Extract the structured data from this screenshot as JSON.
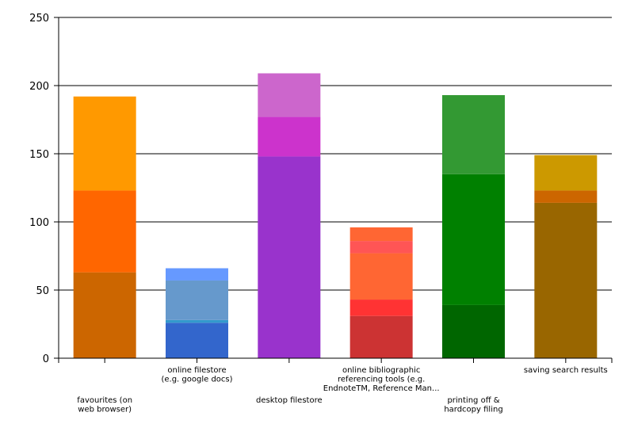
{
  "chart_data": {
    "type": "stacked-bar",
    "categories": [
      [
        "favourites (on",
        "web browser)"
      ],
      [
        "online filestore",
        "(e.g. google docs)"
      ],
      [
        "desktop filestore"
      ],
      [
        "online bibliographic",
        "referencing tools (e.g.",
        "EndnoteTM, Reference Man..."
      ],
      [
        "printing off &",
        "hardcopy filing"
      ],
      [
        "saving search results"
      ]
    ],
    "stacks": [
      {
        "values": [
          63,
          60,
          69
        ],
        "colors": [
          "#cc6600",
          "#ff6600",
          "#ff9900"
        ]
      },
      {
        "values": [
          26,
          2,
          29,
          9
        ],
        "colors": [
          "#3366cc",
          "#3399cc",
          "#6699cc",
          "#6699ff"
        ]
      },
      {
        "values": [
          148,
          29,
          32
        ],
        "colors": [
          "#9933cc",
          "#cc33cc",
          "#cc66cc"
        ]
      },
      {
        "values": [
          31,
          12,
          34,
          9,
          10
        ],
        "colors": [
          "#cc3333",
          "#ff3333",
          "#ff6633",
          "#ff5555",
          "#ff6633"
        ]
      },
      {
        "values": [
          39,
          96,
          58
        ],
        "colors": [
          "#006600",
          "#008000",
          "#339933"
        ]
      },
      {
        "values": [
          114,
          9,
          26
        ],
        "colors": [
          "#996600",
          "#cc6600",
          "#cc9900"
        ]
      }
    ],
    "ylim": [
      0,
      250
    ],
    "yticks": [
      0,
      50,
      100,
      150,
      200,
      250
    ],
    "grid": true
  }
}
